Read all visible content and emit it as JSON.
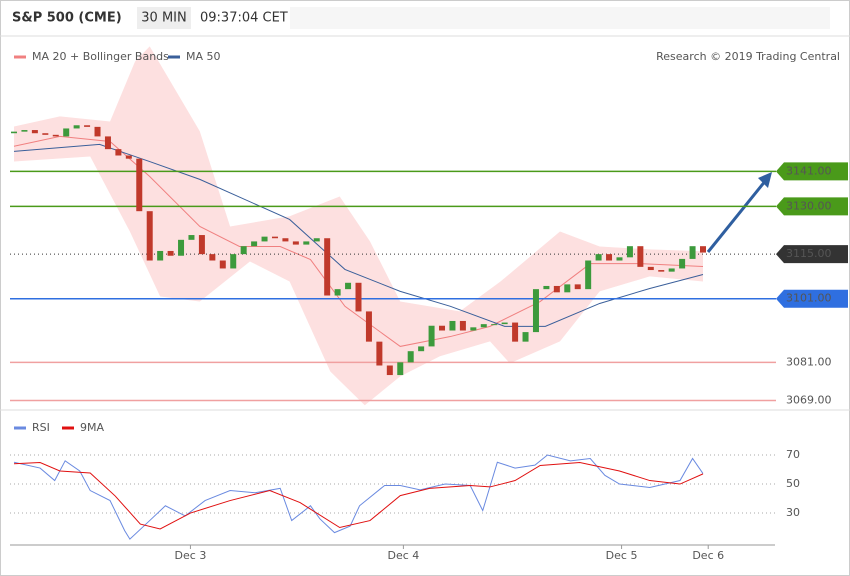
{
  "header": {
    "title": "S&P 500 (CME)",
    "interval": "30 MIN",
    "time": "09:37:04 CET"
  },
  "credit": "Research © 2019 Trading Central",
  "chart_data": [
    {
      "type": "candlestick",
      "ylim": [
        3067.4,
        3182.3
      ],
      "xlim": [
        0,
        66
      ],
      "xticks": [
        {
          "value": 16.9,
          "label": "Dec 3"
        },
        {
          "value": 37.3,
          "label": "Dec 4"
        },
        {
          "value": 58.2,
          "label": "Dec 5"
        },
        {
          "value": 66.5,
          "label": "Dec 6"
        }
      ],
      "open": [
        3153,
        3153.5,
        3154,
        3153,
        3152.5,
        3152,
        3154.5,
        3155.5,
        3155,
        3152,
        3148,
        3146,
        3145,
        3128.5,
        3113,
        3116,
        3114.5,
        3119.5,
        3121,
        3115,
        3113,
        3110.5,
        3115,
        3117.5,
        3119,
        3120.5,
        3120,
        3119,
        3118,
        3119,
        3120,
        3102,
        3104,
        3106,
        3097,
        3087.5,
        3080,
        3077,
        3081,
        3084.5,
        3086,
        3092.5,
        3091,
        3094,
        3091,
        3092,
        3093,
        3093,
        3093.5,
        3087.5,
        3090.5,
        3104,
        3105,
        3103,
        3105.5,
        3104,
        3113,
        3115,
        3113,
        3114,
        3117.5,
        3111,
        3110,
        3109.5,
        3110.5,
        3113.5,
        3117.5
      ],
      "close": [
        3153.5,
        3154,
        3153,
        3152.5,
        3152,
        3154.5,
        3155.5,
        3155,
        3152,
        3148,
        3146,
        3145,
        3128.5,
        3113,
        3116,
        3114.5,
        3119.5,
        3121,
        3115,
        3113,
        3110.5,
        3115,
        3117.5,
        3119,
        3120.5,
        3120,
        3119,
        3118,
        3119,
        3120,
        3102,
        3104,
        3106,
        3097,
        3087.5,
        3080,
        3077,
        3081,
        3084.5,
        3086,
        3092.5,
        3091,
        3094,
        3091,
        3092,
        3093,
        3093,
        3093.5,
        3087.5,
        3090.5,
        3104,
        3105,
        3103,
        3105.5,
        3104,
        3113,
        3115,
        3113,
        3114,
        3117.5,
        3111,
        3110,
        3109.5,
        3110.5,
        3113.5,
        3117.5,
        3115.5
      ],
      "up_color": "#3c9a3c",
      "down_color": "#c0392b",
      "indicators": [
        {
          "name": "MA 20 + Bollinger Bands",
          "color": "#f08080",
          "band_color": "#fde0e0",
          "ma": {
            "x": [
              0,
              4.4,
              9.2,
              13,
              17.8,
              21.6,
              25.5,
              28.4,
              31.7,
              37,
              41.8,
              45.6,
              50.4,
              55.2,
              60,
              66
            ],
            "values": [
              3148.9,
              3152,
              3150.4,
              3139.4,
              3123.7,
              3117.4,
              3117.4,
              3113.3,
              3098.6,
              3086,
              3089.1,
              3092.3,
              3100.1,
              3112,
              3112,
              3111.1
            ]
          },
          "upper": {
            "x": [
              0,
              4.4,
              9.2,
              11.6,
              13,
              17.8,
              20.7,
              26.4,
              31.2,
              34.1,
              37,
              42.7,
              46.6,
              52.3,
              56.1,
              60.9,
              66
            ],
            "values": [
              3155.1,
              3158.3,
              3156.7,
              3175.6,
              3180.3,
              3153.6,
              3123.7,
              3126.9,
              3133.1,
              3119,
              3100.1,
              3097,
              3106.4,
              3122.1,
              3117.4,
              3116.5,
              3115.9
            ]
          },
          "lower": {
            "x": [
              0,
              7.3,
              11.1,
              14,
              17.8,
              22.6,
              26.4,
              30.3,
              33.6,
              37,
              40.8,
              45.6,
              47.5,
              52.3,
              56.1,
              60.9,
              66
            ],
            "values": [
              3144.1,
              3145.7,
              3122.1,
              3101.7,
              3100.1,
              3112.7,
              3106.4,
              3078.1,
              3067.5,
              3076.6,
              3082.9,
              3087.6,
              3080.7,
              3087.6,
              3103.3,
              3108,
              3106.4
            ]
          }
        },
        {
          "name": "MA 50",
          "color": "#3a5f9a",
          "x": [
            0,
            8.2,
            13,
            17.8,
            26.4,
            31.7,
            37,
            41.8,
            47,
            50.9,
            56.1,
            60.9,
            66
          ],
          "values": [
            3147.3,
            3149.5,
            3144.1,
            3138.5,
            3125.9,
            3110.2,
            3103.3,
            3098.6,
            3092.3,
            3092.3,
            3099.5,
            3104.2,
            3108.6
          ]
        }
      ],
      "levels": [
        {
          "value": 3141,
          "label": "3141.00",
          "color": "#4a9a1a",
          "style": "solid"
        },
        {
          "value": 3130,
          "label": "3130.00",
          "color": "#4a9a1a",
          "style": "solid"
        },
        {
          "value": 3115,
          "label": "3115.00",
          "color": "#333333",
          "style": "dotted"
        },
        {
          "value": 3101,
          "label": "3101.00",
          "color": "#2f6fe0",
          "style": "solid"
        },
        {
          "value": 3081,
          "label": "3081.00",
          "color": "#f0a0a0",
          "style": "solid"
        },
        {
          "value": 3069,
          "label": "3069.00",
          "color": "#f0a0a0",
          "style": "solid"
        }
      ]
    },
    {
      "type": "line",
      "ylim": [
        11.4,
        90.7
      ],
      "xlim": [
        0,
        66
      ],
      "yticks": [
        30,
        50,
        70
      ],
      "series": [
        {
          "name": "RSI",
          "color": "#6a8ae0",
          "x": [
            0,
            2.5,
            3.9,
            4.9,
            6.3,
            7.3,
            9.2,
            10.6,
            11.1,
            13,
            14.5,
            16.4,
            18.3,
            20.7,
            23.1,
            25.5,
            26.6,
            28.4,
            29.3,
            30.7,
            32.2,
            33.1,
            35.5,
            37,
            38.9,
            41.3,
            43.7,
            44.9,
            46.3,
            48,
            49.9,
            51.1,
            53.3,
            55.2,
            56.6,
            58,
            60.9,
            63.8,
            65,
            66
          ],
          "values": [
            65,
            61,
            52.4,
            66,
            59,
            45.5,
            38.6,
            17.9,
            12,
            24.8,
            35,
            28,
            38.6,
            45.5,
            44,
            47,
            24.8,
            35,
            26,
            16.5,
            21,
            35,
            49,
            49,
            46,
            50,
            49,
            31.7,
            65,
            61,
            63,
            70,
            66,
            67.6,
            56,
            50,
            47.6,
            52.4,
            67.6,
            57.2
          ]
        },
        {
          "name": "9MA",
          "color": "#e01010",
          "x": [
            0,
            2.5,
            4.4,
            7.3,
            9.7,
            12.1,
            14,
            16.9,
            20.7,
            24.5,
            27.4,
            31.2,
            34.1,
            37,
            39.8,
            43.7,
            45.6,
            48,
            50.4,
            54.2,
            58,
            60.9,
            63.8,
            66
          ],
          "values": [
            64,
            64.8,
            59,
            57.6,
            41.7,
            22.4,
            19,
            30,
            38.6,
            45.5,
            37.2,
            20,
            24.8,
            42,
            47,
            49,
            48,
            52.4,
            62.8,
            64.8,
            59,
            52.4,
            50,
            57
          ]
        }
      ]
    }
  ]
}
